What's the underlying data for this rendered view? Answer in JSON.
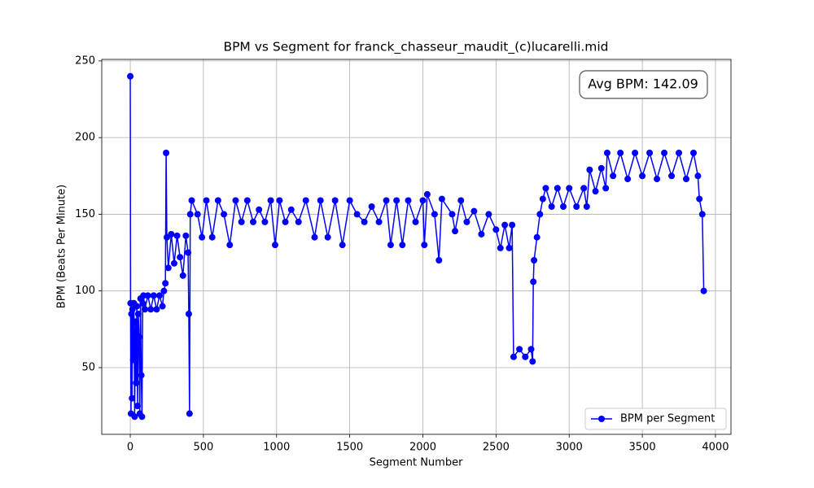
{
  "chart_data": {
    "type": "line",
    "title": "BPM vs Segment for franck_chasseur_maudit_(c)lucarelli.mid",
    "xlabel": "Segment Number",
    "ylabel": "BPM (Beats Per Minute)",
    "annotation": "Avg BPM: 142.09",
    "xlim": [
      -195,
      4106
    ],
    "ylim": [
      6.5,
      251
    ],
    "xticks": [
      0,
      500,
      1000,
      1500,
      2000,
      2500,
      3000,
      3500,
      4000
    ],
    "yticks": [
      50,
      100,
      150,
      200,
      250
    ],
    "grid": true,
    "legend": "lower right",
    "x": [
      0,
      2,
      5,
      8,
      12,
      15,
      20,
      25,
      30,
      35,
      40,
      45,
      50,
      55,
      60,
      65,
      70,
      75,
      80,
      85,
      90,
      100,
      120,
      140,
      160,
      180,
      200,
      220,
      230,
      240,
      245,
      250,
      260,
      280,
      300,
      320,
      340,
      360,
      380,
      395,
      400,
      405,
      410,
      420,
      460,
      490,
      520,
      560,
      600,
      640,
      680,
      720,
      760,
      800,
      840,
      880,
      920,
      960,
      990,
      1020,
      1060,
      1100,
      1150,
      1200,
      1260,
      1300,
      1350,
      1400,
      1450,
      1500,
      1550,
      1600,
      1650,
      1700,
      1750,
      1780,
      1820,
      1860,
      1900,
      1950,
      2000,
      2010,
      2030,
      2080,
      2110,
      2130,
      2200,
      2220,
      2260,
      2300,
      2350,
      2400,
      2450,
      2500,
      2530,
      2560,
      2590,
      2610,
      2620,
      2660,
      2700,
      2740,
      2750,
      2755,
      2760,
      2780,
      2800,
      2820,
      2840,
      2880,
      2920,
      2960,
      3000,
      3050,
      3100,
      3120,
      3140,
      3180,
      3220,
      3250,
      3260,
      3300,
      3350,
      3400,
      3450,
      3500,
      3550,
      3600,
      3650,
      3700,
      3750,
      3800,
      3850,
      3880,
      3890,
      3910,
      3920
    ],
    "series": [
      {
        "name": "BPM per Segment",
        "color": "#0000ff",
        "values": [
          240,
          92,
          20,
          85,
          30,
          88,
          55,
          92,
          18,
          80,
          40,
          90,
          25,
          85,
          70,
          20,
          95,
          45,
          18,
          92,
          97,
          88,
          97,
          88,
          97,
          88,
          97,
          90,
          100,
          105,
          190,
          135,
          115,
          137,
          118,
          136,
          122,
          110,
          136,
          125,
          85,
          20,
          150,
          159,
          150,
          135,
          159,
          135,
          159,
          150,
          130,
          159,
          145,
          159,
          145,
          153,
          145,
          159,
          130,
          159,
          145,
          153,
          145,
          159,
          135,
          159,
          135,
          159,
          130,
          159,
          150,
          145,
          155,
          145,
          159,
          130,
          159,
          130,
          159,
          145,
          159,
          130,
          163,
          150,
          120,
          160,
          150,
          139,
          159,
          145,
          152,
          137,
          150,
          140,
          128,
          143,
          128,
          143,
          57,
          62,
          57,
          62,
          54,
          106,
          120,
          135,
          150,
          160,
          167,
          155,
          167,
          155,
          167,
          155,
          167,
          155,
          179,
          165,
          180,
          167,
          190,
          175,
          190,
          173,
          190,
          175,
          190,
          173,
          190,
          175,
          190,
          173,
          190,
          175,
          160,
          150,
          100
        ]
      }
    ]
  }
}
